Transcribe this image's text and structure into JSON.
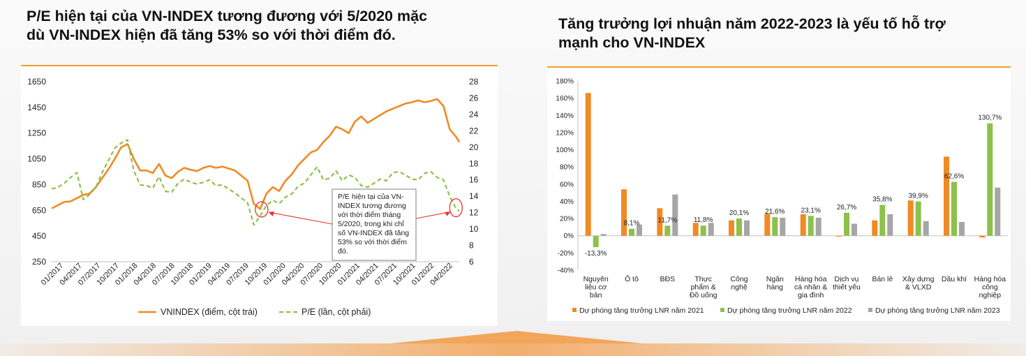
{
  "left": {
    "title_line1": "P/E hiện tại của VN-INDEX tương đương với 5/2020 mặc",
    "title_line2": "dù VN-INDEX hiện đã tăng 53% so với thời điểm đó."
  },
  "right": {
    "title_line1": "Tăng trưởng lợi nhuận năm 2022-2023 là yếu tố hỗ trợ",
    "title_line2": "mạnh cho VN-INDEX"
  },
  "colors": {
    "accent": "#f39c2f",
    "orange": "#f08a24",
    "green": "#8dc14a",
    "grey": "#a6a6a6"
  },
  "chart_data": [
    {
      "type": "line",
      "yticks_left": [
        "250",
        "450",
        "650",
        "850",
        "1050",
        "1250",
        "1450",
        "1650"
      ],
      "yticks_right": [
        "6",
        "8",
        "10",
        "12",
        "14",
        "16",
        "18",
        "20",
        "22",
        "24",
        "26",
        "28"
      ],
      "ylim_left": [
        250,
        1650
      ],
      "ylim_right": [
        6,
        28
      ],
      "x_labels": [
        "01/2017",
        "04/2017",
        "07/2017",
        "10/2017",
        "01/2018",
        "04/2018",
        "07/2018",
        "10/2018",
        "01/2019",
        "04/2019",
        "07/2019",
        "10/2019",
        "01/2020",
        "04/2020",
        "07/2020",
        "10/2020",
        "01/2021",
        "04/2021",
        "07/2021",
        "10/2021",
        "01/2022",
        "04/2022"
      ],
      "series": [
        {
          "name": "VNINDEX (điểm, cột trái)",
          "axis": "left",
          "color": "#f08a24",
          "x": [
            0,
            1,
            2,
            3,
            4,
            5,
            6,
            7,
            8,
            9,
            10,
            11,
            12,
            13,
            14,
            15,
            16,
            17,
            18,
            19,
            20,
            21,
            22,
            23,
            24,
            25,
            26,
            27,
            28,
            29,
            30,
            31,
            32,
            33,
            34,
            35,
            36,
            37,
            38,
            39,
            40,
            41,
            42,
            43,
            44,
            45,
            46,
            47,
            48,
            49,
            50,
            51,
            52,
            53,
            54,
            55,
            56,
            57,
            58,
            59,
            60,
            61,
            62,
            63,
            64,
            64.5
          ],
          "values": [
            665,
            690,
            715,
            720,
            745,
            770,
            780,
            830,
            900,
            970,
            1050,
            1140,
            1165,
            1050,
            960,
            960,
            940,
            1010,
            920,
            900,
            950,
            980,
            965,
            955,
            980,
            995,
            980,
            990,
            975,
            960,
            920,
            880,
            700,
            660,
            780,
            830,
            800,
            880,
            930,
            1000,
            1050,
            1100,
            1120,
            1180,
            1230,
            1300,
            1280,
            1250,
            1340,
            1380,
            1330,
            1360,
            1390,
            1420,
            1440,
            1460,
            1480,
            1490,
            1505,
            1490,
            1500,
            1515,
            1460,
            1280,
            1220,
            1180
          ]
        },
        {
          "name": "P/E (lần, cột phải)",
          "axis": "right",
          "color": "#8dc14a",
          "x": [
            0,
            1,
            2,
            3,
            4,
            5,
            6,
            7,
            8,
            9,
            10,
            11,
            12,
            13,
            14,
            15,
            16,
            17,
            18,
            19,
            20,
            21,
            22,
            23,
            24,
            25,
            26,
            27,
            28,
            29,
            30,
            31,
            32,
            33,
            34,
            35,
            36,
            37,
            38,
            39,
            40,
            41,
            42,
            43,
            44,
            45,
            46,
            47,
            48,
            49,
            50,
            51,
            52,
            53,
            54,
            55,
            56,
            57,
            58,
            59,
            60,
            61,
            62,
            63,
            64,
            64.5
          ],
          "values": [
            14.9,
            15.1,
            15.6,
            16.3,
            16.9,
            13.6,
            14.2,
            15.1,
            16.9,
            18.4,
            19.9,
            20.5,
            20.9,
            17.1,
            15.4,
            15.3,
            15.0,
            16.4,
            14.6,
            14.5,
            15.6,
            16.1,
            15.7,
            15.5,
            15.7,
            16.0,
            15.3,
            15.4,
            14.9,
            14.4,
            13.8,
            13.2,
            10.5,
            11.6,
            12.9,
            13.5,
            13.1,
            13.9,
            14.3,
            15.2,
            15.6,
            16.6,
            17.6,
            16.0,
            16.2,
            17.1,
            15.9,
            16.6,
            16.3,
            15.3,
            15.1,
            15.6,
            16.1,
            15.9,
            16.9,
            17.0,
            16.6,
            16.1,
            16.0,
            16.8,
            17.0,
            16.3,
            16.0,
            14.0,
            12.5,
            12.2
          ]
        }
      ],
      "annotation": "P/E hiện tại của VN-INDEX tương đương với thời điểm tháng 5/2020, trong khi chỉ số VN-INDEX đã tăng 53% so với thời điểm đó."
    },
    {
      "type": "bar",
      "categories": [
        "Nguyên liệu cơ bản",
        "Ô tô",
        "BĐS",
        "Thực phẩm & Đồ uống",
        "Công nghệ",
        "Ngân hàng",
        "Hàng hóa cá nhân & gia đình",
        "Dịch vụ thiết yếu",
        "Bán lẻ",
        "Xây dựng & VLXD",
        "Dầu khí",
        "Hàng hóa công nghiệp"
      ],
      "category_lines": [
        [
          "Nguyên",
          "liệu cơ",
          "bản"
        ],
        [
          "Ô tô"
        ],
        [
          "BĐS"
        ],
        [
          "Thực",
          "phẩm &",
          "Đồ uống"
        ],
        [
          "Công",
          "nghệ"
        ],
        [
          "Ngân",
          "hàng"
        ],
        [
          "Hàng hóa",
          "cá nhân &",
          "gia đình"
        ],
        [
          "Dịch vụ",
          "thiết yếu"
        ],
        [
          "Bán lẻ"
        ],
        [
          "Xây dựng",
          "& VLXD"
        ],
        [
          "Dầu khí"
        ],
        [
          "Hàng hóa",
          "công",
          "nghiệp"
        ]
      ],
      "yticks": [
        "-40%",
        "-20%",
        "0%",
        "20%",
        "40%",
        "60%",
        "80%",
        "100%",
        "120%",
        "140%",
        "160%",
        "180%"
      ],
      "ylim": [
        -40,
        180
      ],
      "series": [
        {
          "name": "Dự phóng tăng trưởng LNR năm 2021",
          "color": "#f08a24",
          "values": [
            166,
            54,
            32,
            15,
            18,
            26,
            25,
            -1,
            18,
            41,
            92,
            -2
          ]
        },
        {
          "name": "Dự phóng tăng trưởng LNR năm 2022",
          "color": "#8dc14a",
          "values": [
            -13.3,
            8.1,
            11.7,
            11.8,
            20.1,
            21.6,
            23.1,
            26.7,
            35.8,
            39.9,
            62.6,
            130.7
          ]
        },
        {
          "name": "Dự phóng tăng trưởng LNR năm 2023",
          "color": "#a6a6a6",
          "values": [
            2,
            13,
            48,
            15,
            18,
            21,
            21,
            14,
            25,
            17,
            16,
            56
          ]
        }
      ],
      "data_labels": [
        "-13,3%",
        "8,1%",
        "11,7%",
        "11,8%",
        "20,1%",
        "21,6%",
        "23,1%",
        "26,7%",
        "35,8%",
        "39,9%",
        "62,6%",
        "130,7%"
      ]
    }
  ]
}
